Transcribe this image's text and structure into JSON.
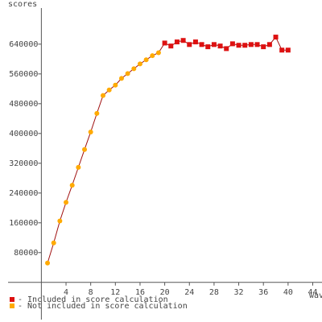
{
  "chart_data": {
    "type": "line",
    "y_label": "scores",
    "x_label": "wav",
    "xlim": [
      -5.4,
      45.5
    ],
    "ylim": [
      -100000,
      737000
    ],
    "xticks": [
      4,
      8,
      12,
      16,
      20,
      24,
      28,
      32,
      36,
      40,
      44
    ],
    "yticks": [
      80000,
      160000,
      240000,
      320000,
      400000,
      480000,
      560000,
      640000
    ],
    "line_color": "#a01010",
    "series": [
      {
        "name": "- Included in score calculation",
        "color": "#dd1111",
        "x": [
          20,
          21,
          22,
          23,
          24,
          25,
          26,
          27,
          28,
          29,
          30,
          31,
          32,
          33,
          34,
          35,
          36,
          37,
          38,
          39,
          40
        ],
        "values": [
          643000,
          635000,
          646000,
          650000,
          639000,
          646000,
          639000,
          633000,
          639000,
          635000,
          628000,
          641000,
          637000,
          637000,
          639000,
          639000,
          633000,
          639000,
          659000,
          624000,
          624000
        ]
      },
      {
        "name": "- Not included in score calculation",
        "color": "#ffaa00",
        "x": [
          1,
          2,
          3,
          4,
          5,
          6,
          7,
          8,
          9,
          10,
          11,
          12,
          13,
          14,
          15,
          16,
          17,
          18,
          19
        ],
        "values": [
          52000,
          106000,
          165000,
          215000,
          261000,
          309000,
          357000,
          404000,
          454000,
          502000,
          517000,
          530000,
          548000,
          561000,
          574000,
          587000,
          598000,
          609000,
          617000
        ]
      }
    ]
  }
}
